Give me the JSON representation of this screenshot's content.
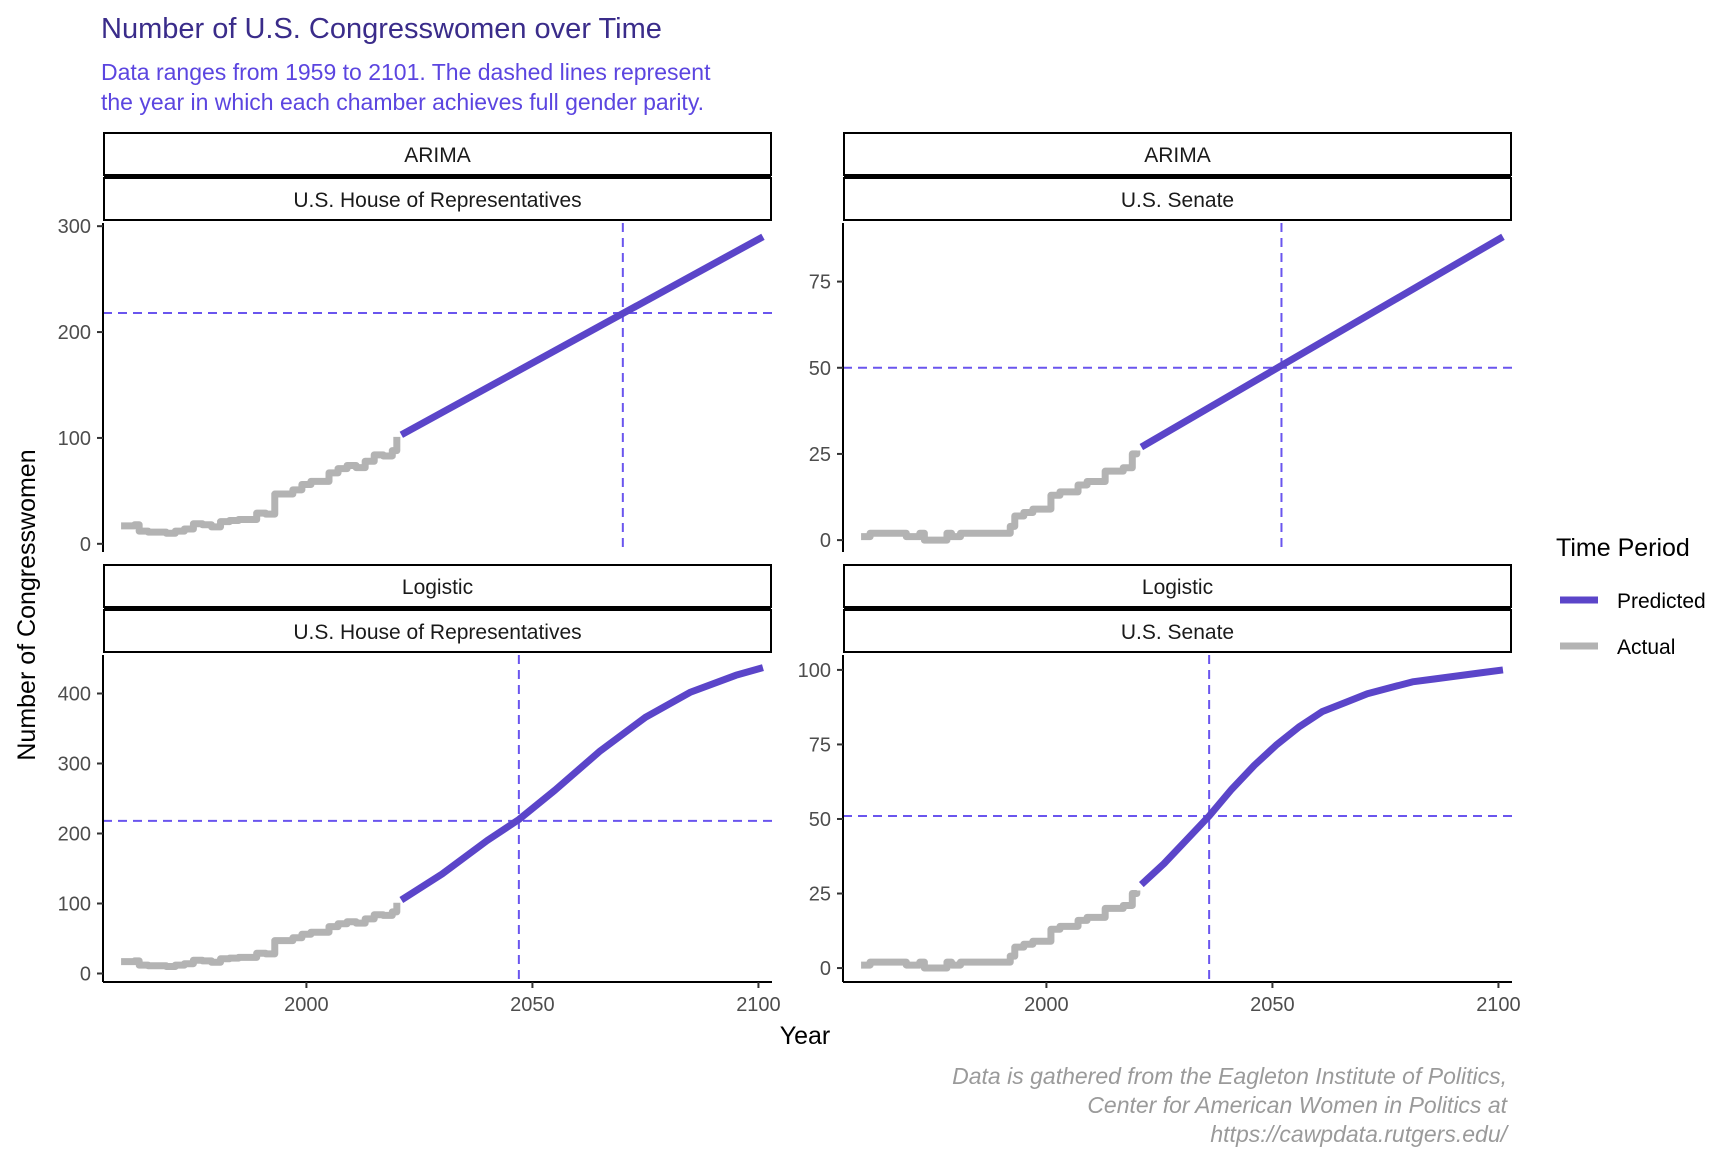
{
  "title": "Number of U.S. Congresswomen over Time",
  "subtitle": [
    "Data ranges from 1959 to 2101. The dashed lines represent",
    "the year in which each chamber achieves full gender parity."
  ],
  "caption": [
    "Data is gathered from the Eagleton Institute of Politics,",
    "Center for American Women in Politics at",
    "https://cawpdata.rutgers.edu/"
  ],
  "xlabel": "Year",
  "ylabel": "Number of Congresswomen",
  "legend": {
    "title": "Time Period",
    "position": "right",
    "items": [
      {
        "label": "Predicted",
        "color": "#5B45C9"
      },
      {
        "label": "Actual",
        "color": "#B3B3B3"
      }
    ]
  },
  "colors": {
    "title": "#3A2C8A",
    "subtitle": "#5B45E0",
    "caption": "#9A9A9A",
    "predicted": "#5B45C9",
    "actual": "#B3B3B3",
    "reference": "#6A55EE"
  },
  "chart_data": [
    {
      "type": "line",
      "strip": [
        "ARIMA",
        "U.S. House of Representatives"
      ],
      "xlim": [
        1955,
        2103
      ],
      "ylim": [
        -3,
        303
      ],
      "xticks": [
        2000,
        2050,
        2100
      ],
      "yticks": [
        0,
        100,
        200,
        300
      ],
      "ref_x": 2070,
      "ref_y": 218,
      "series": [
        {
          "name": "Actual",
          "x": [
            1959,
            1961,
            1962,
            1963,
            1965,
            1967,
            1969,
            1971,
            1973,
            1975,
            1977,
            1979,
            1981,
            1983,
            1985,
            1987,
            1989,
            1991,
            1993,
            1995,
            1997,
            1999,
            2001,
            2003,
            2005,
            2007,
            2009,
            2011,
            2013,
            2015,
            2017,
            2019,
            2020
          ],
          "y": [
            17,
            17,
            18,
            12,
            11,
            11,
            10,
            12,
            14,
            19,
            18,
            16,
            21,
            22,
            23,
            23,
            29,
            28,
            47,
            47,
            51,
            56,
            59,
            59,
            67,
            71,
            74,
            72,
            78,
            84,
            83,
            88,
            101
          ]
        },
        {
          "name": "Predicted",
          "x": [
            2021,
            2101
          ],
          "y": [
            103,
            290
          ]
        }
      ]
    },
    {
      "type": "line",
      "strip": [
        "ARIMA",
        "U.S. Senate"
      ],
      "xlim": [
        1955,
        2103
      ],
      "ylim": [
        -2,
        92
      ],
      "xticks": [
        2000,
        2050,
        2100
      ],
      "yticks": [
        0,
        25,
        50,
        75
      ],
      "ref_x": 2052,
      "ref_y": 50,
      "series": [
        {
          "name": "Actual",
          "x": [
            1959,
            1961,
            1963,
            1965,
            1967,
            1969,
            1971,
            1972,
            1973,
            1975,
            1977,
            1978,
            1979,
            1981,
            1983,
            1985,
            1987,
            1989,
            1991,
            1992,
            1993,
            1995,
            1997,
            1999,
            2001,
            2003,
            2005,
            2007,
            2009,
            2011,
            2013,
            2015,
            2017,
            2019,
            2020
          ],
          "y": [
            1,
            2,
            2,
            2,
            2,
            1,
            1,
            2,
            0,
            0,
            0,
            2,
            1,
            2,
            2,
            2,
            2,
            2,
            2,
            4,
            7,
            8,
            9,
            9,
            13,
            14,
            14,
            16,
            17,
            17,
            20,
            20,
            21,
            25,
            26
          ]
        },
        {
          "name": "Predicted",
          "x": [
            2021,
            2101
          ],
          "y": [
            27,
            88
          ]
        }
      ]
    },
    {
      "type": "line",
      "strip": [
        "Logistic",
        "U.S. House of Representatives"
      ],
      "xlim": [
        1955,
        2103
      ],
      "ylim": [
        -5,
        455
      ],
      "xticks": [
        2000,
        2050,
        2100
      ],
      "yticks": [
        0,
        100,
        200,
        300,
        400
      ],
      "ref_x": 2047,
      "ref_y": 218,
      "series": [
        {
          "name": "Actual",
          "x": [
            1959,
            1961,
            1962,
            1963,
            1965,
            1967,
            1969,
            1971,
            1973,
            1975,
            1977,
            1979,
            1981,
            1983,
            1985,
            1987,
            1989,
            1991,
            1993,
            1995,
            1997,
            1999,
            2001,
            2003,
            2005,
            2007,
            2009,
            2011,
            2013,
            2015,
            2017,
            2019,
            2020
          ],
          "y": [
            17,
            17,
            18,
            12,
            11,
            11,
            10,
            12,
            14,
            19,
            18,
            16,
            21,
            22,
            23,
            23,
            29,
            28,
            47,
            47,
            51,
            56,
            59,
            59,
            67,
            71,
            74,
            72,
            78,
            84,
            83,
            88,
            101
          ]
        },
        {
          "name": "Predicted",
          "x": [
            2021,
            2030,
            2040,
            2047,
            2055,
            2065,
            2075,
            2085,
            2095,
            2101
          ],
          "y": [
            105,
            142,
            190,
            220,
            262,
            318,
            366,
            402,
            426,
            437
          ]
        }
      ]
    },
    {
      "type": "line",
      "strip": [
        "Logistic",
        "U.S. Senate"
      ],
      "xlim": [
        1955,
        2103
      ],
      "ylim": [
        -3,
        105
      ],
      "xticks": [
        2000,
        2050,
        2100
      ],
      "yticks": [
        0,
        25,
        50,
        75,
        100
      ],
      "ref_x": 2036,
      "ref_y": 51,
      "series": [
        {
          "name": "Actual",
          "x": [
            1959,
            1961,
            1963,
            1965,
            1967,
            1969,
            1971,
            1972,
            1973,
            1975,
            1977,
            1978,
            1979,
            1981,
            1983,
            1985,
            1987,
            1989,
            1991,
            1992,
            1993,
            1995,
            1997,
            1999,
            2001,
            2003,
            2005,
            2007,
            2009,
            2011,
            2013,
            2015,
            2017,
            2019,
            2020
          ],
          "y": [
            1,
            2,
            2,
            2,
            2,
            1,
            1,
            2,
            0,
            0,
            0,
            2,
            1,
            2,
            2,
            2,
            2,
            2,
            2,
            4,
            7,
            8,
            9,
            9,
            13,
            14,
            14,
            16,
            17,
            17,
            20,
            20,
            21,
            25,
            26
          ]
        },
        {
          "name": "Predicted",
          "x": [
            2021,
            2026,
            2031,
            2036,
            2041,
            2046,
            2051,
            2056,
            2061,
            2066,
            2071,
            2076,
            2081,
            2086,
            2091,
            2096,
            2101
          ],
          "y": [
            28,
            35,
            43,
            51,
            60,
            68,
            75,
            81,
            86,
            89,
            92,
            94,
            96,
            97,
            98,
            99,
            100
          ]
        }
      ]
    }
  ]
}
